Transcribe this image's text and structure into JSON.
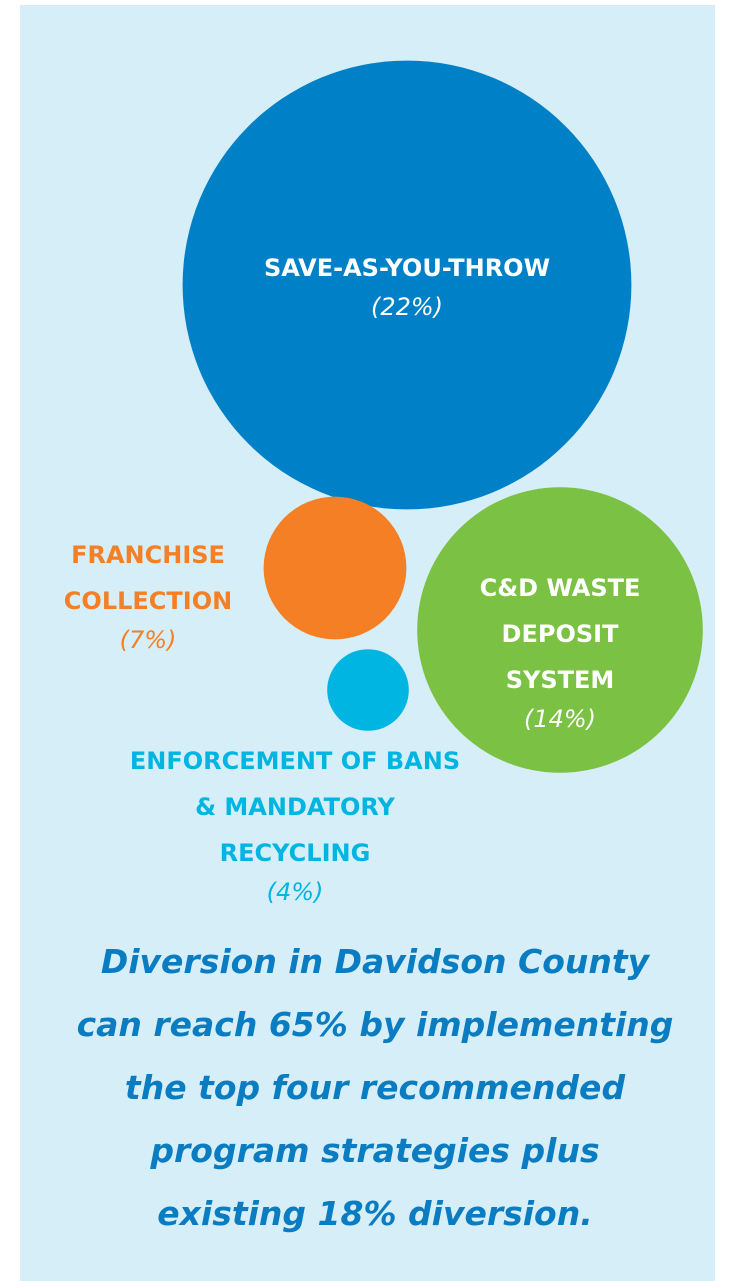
{
  "chart_data": {
    "type": "bubble",
    "categories": [
      "SAVE-AS-YOU-THROW",
      "FRANCHISE COLLECTION",
      "C&D WASTE DEPOSIT SYSTEM",
      "ENFORCEMENT OF BANS & MANDATORY RECYCLING"
    ],
    "values": [
      22,
      7,
      14,
      4
    ],
    "value_labels": [
      "(22%)",
      "(7%)",
      "(14%)",
      "(4%)"
    ],
    "colors": [
      "#0080c6",
      "#f47f24",
      "#7bc143",
      "#00b5e2"
    ],
    "note": "Diversion in Davidson County can reach 65% by implementing the top four recommended program strategies plus existing 18% diversion."
  }
}
